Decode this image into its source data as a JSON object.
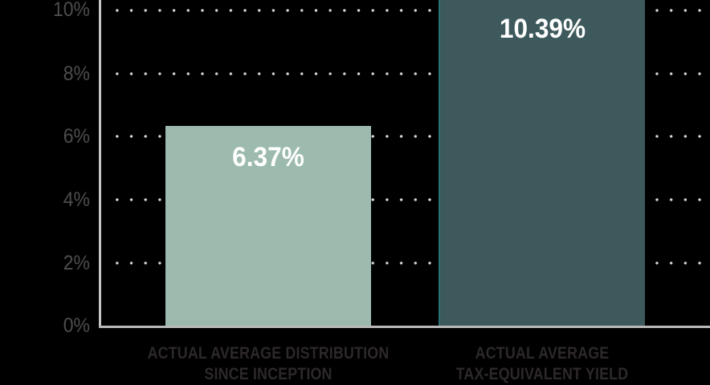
{
  "chart_data": {
    "type": "bar",
    "title": "",
    "xlabel": "",
    "ylabel": "",
    "categories": [
      "ACTUAL AVERAGE DISTRIBUTION SINCE INCEPTION",
      "ACTUAL AVERAGE TAX-EQUIVALENT YIELD"
    ],
    "values": [
      6.37,
      10.39
    ],
    "value_labels": [
      "6.37%",
      "10.39%"
    ],
    "y_tick_labels": [
      "0%",
      "2%",
      "4%",
      "6%",
      "8%",
      "10%"
    ],
    "ylim": [
      0,
      10
    ],
    "grid": "dotted horizontal gridlines at 2% intervals",
    "legend": "none",
    "background_color": "#000000",
    "bar_colors": [
      "#9cbaad",
      "#3d595c"
    ],
    "bar2_edge_color": "#2a7076",
    "axis_line_color": "#c0c0c0",
    "tick_label_color": "#4d4d4d",
    "category_label_color": "#2d282a",
    "value_label_color": "#ffffff"
  },
  "y_axis": {
    "t0": "10%",
    "t1": "8%",
    "t2": "6%",
    "t3": "4%",
    "t4": "2%",
    "t5": "0%"
  },
  "bars": [
    {
      "value_label": "6.37%",
      "category_line1": "ACTUAL AVERAGE DISTRIBUTION",
      "category_line2": "SINCE INCEPTION"
    },
    {
      "value_label": "10.39%",
      "category_line1": "ACTUAL AVERAGE",
      "category_line2": "TAX-EQUIVALENT YIELD"
    }
  ]
}
